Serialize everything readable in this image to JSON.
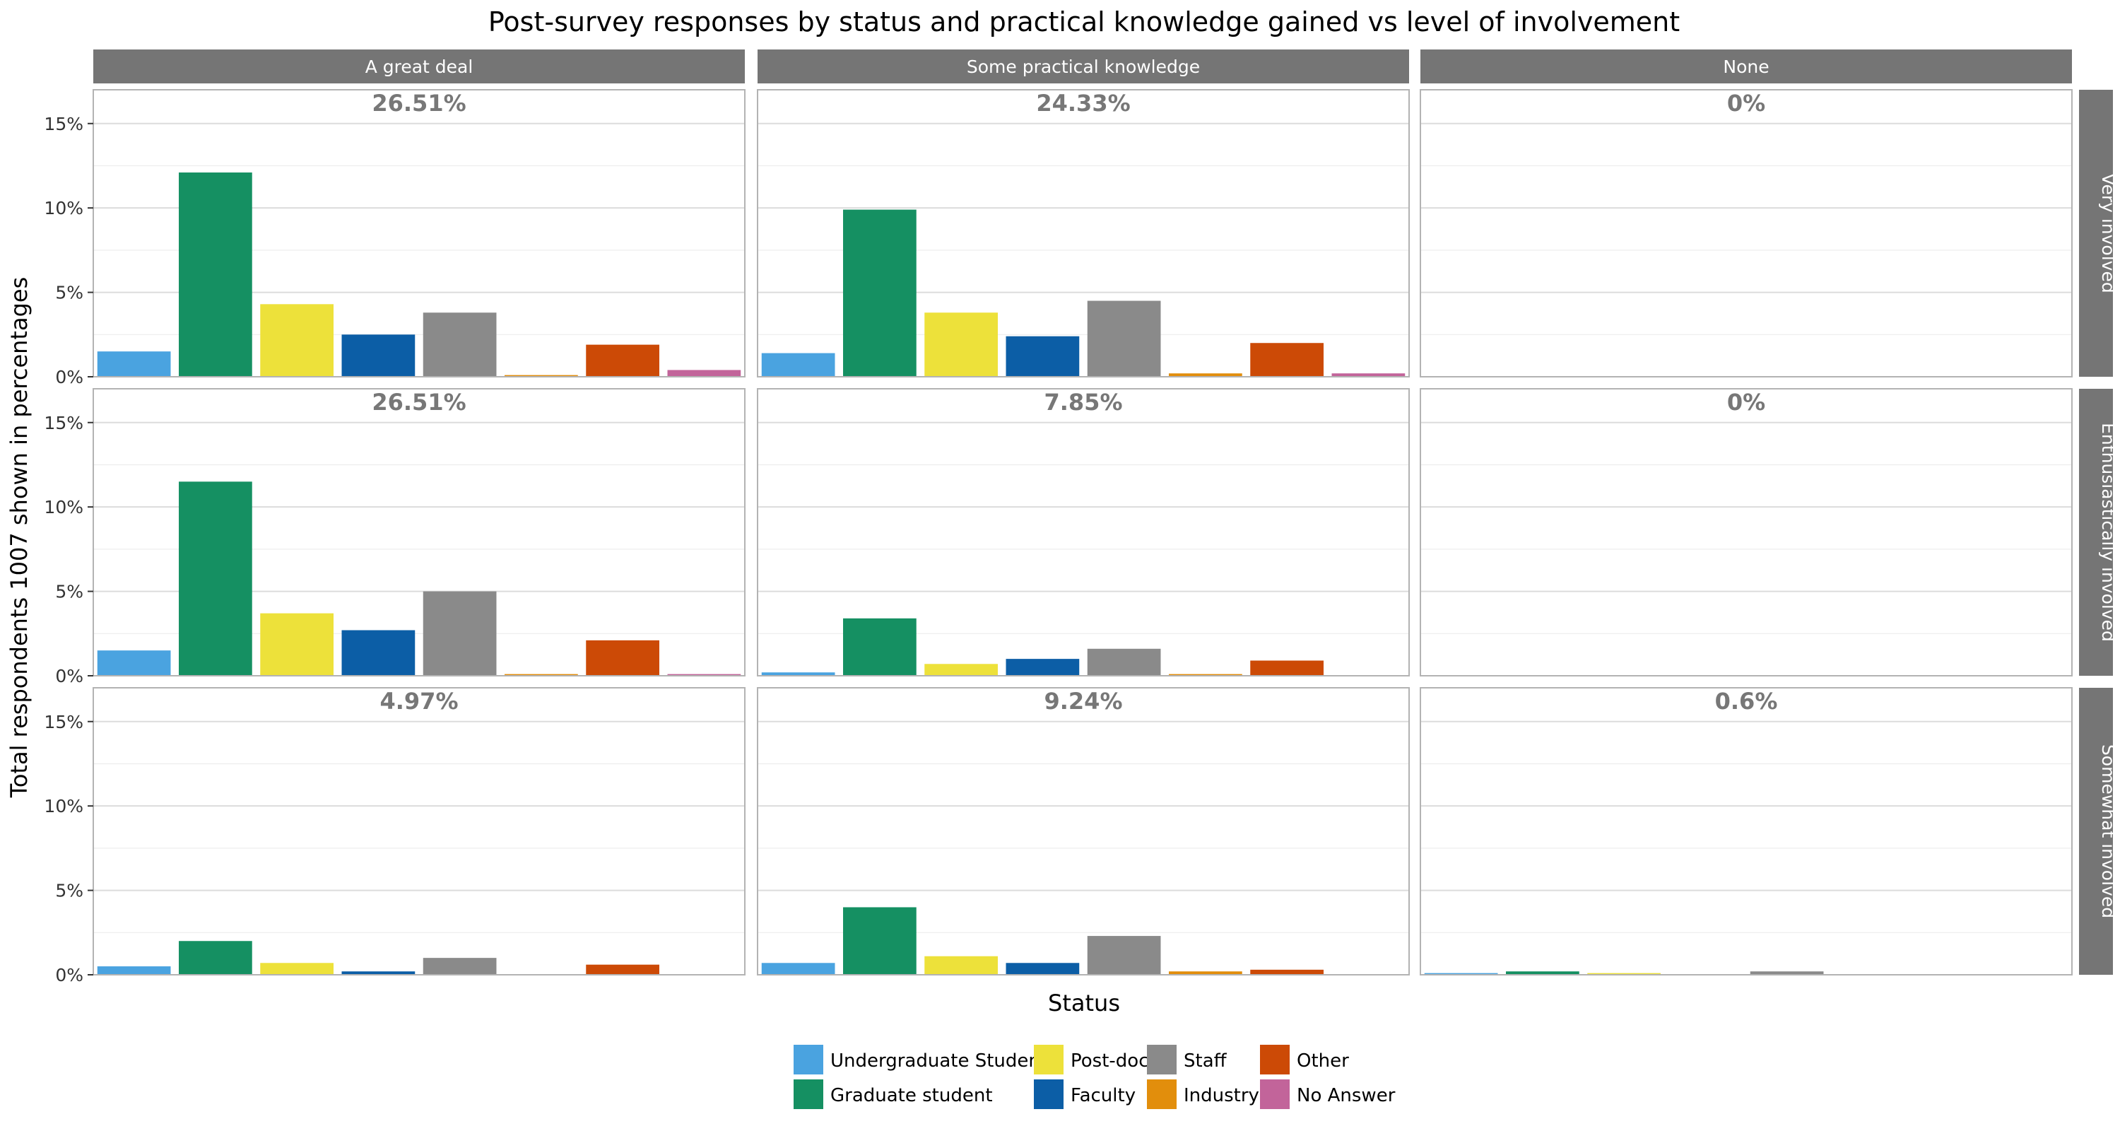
{
  "chart_data": {
    "type": "bar",
    "title": "Post-survey responses by status and practical knowledge gained vs level of involvement",
    "xlabel": "Status",
    "ylabel": "Total respondents 1007 shown in percentages",
    "ylim": [
      0,
      17
    ],
    "y_ticks": [
      "0%",
      "5%",
      "10%",
      "15%"
    ],
    "y_tick_values": [
      0,
      5,
      10,
      15
    ],
    "grid": true,
    "legend_position": "bottom",
    "column_facets": [
      "A great deal",
      "Some practical knowledge",
      "None"
    ],
    "row_facets": [
      "Very involved",
      "Enthusiastically involved",
      "Somewhat involved"
    ],
    "categories": [
      "Undergraduate Student",
      "Graduate student",
      "Post-doc",
      "Faculty",
      "Staff",
      "Industry",
      "Other",
      "No Answer"
    ],
    "colors": [
      "#4aa3e0",
      "#159062",
      "#ede13a",
      "#0c5ea6",
      "#8a8a8a",
      "#e28e0c",
      "#cc4a06",
      "#c2649a"
    ],
    "legend": {
      "columns": [
        [
          "Undergraduate Student",
          "Graduate student"
        ],
        [
          "Post-doc",
          "Faculty"
        ],
        [
          "Staff",
          "Industry"
        ],
        [
          "Other",
          "No Answer"
        ]
      ]
    },
    "panels": [
      {
        "row": "Very involved",
        "col": "A great deal",
        "label": "26.51%",
        "values": [
          1.5,
          12.1,
          4.3,
          2.5,
          3.8,
          0.1,
          1.9,
          0.4
        ]
      },
      {
        "row": "Very involved",
        "col": "Some practical knowledge",
        "label": "24.33%",
        "values": [
          1.4,
          9.9,
          3.8,
          2.4,
          4.5,
          0.2,
          2.0,
          0.2
        ]
      },
      {
        "row": "Very involved",
        "col": "None",
        "label": "0%",
        "values": [
          0,
          0,
          0,
          0,
          0,
          0,
          0,
          0
        ]
      },
      {
        "row": "Enthusiastically involved",
        "col": "A great deal",
        "label": "26.51%",
        "values": [
          1.5,
          11.5,
          3.7,
          2.7,
          5.0,
          0.1,
          2.1,
          0.1
        ]
      },
      {
        "row": "Enthusiastically involved",
        "col": "Some practical knowledge",
        "label": "7.85%",
        "values": [
          0.2,
          3.4,
          0.7,
          1.0,
          1.6,
          0.1,
          0.9,
          0
        ]
      },
      {
        "row": "Enthusiastically involved",
        "col": "None",
        "label": "0%",
        "values": [
          0,
          0,
          0,
          0,
          0,
          0,
          0,
          0
        ]
      },
      {
        "row": "Somewhat involved",
        "col": "A great deal",
        "label": "4.97%",
        "values": [
          0.5,
          2.0,
          0.7,
          0.2,
          1.0,
          0,
          0.6,
          0
        ]
      },
      {
        "row": "Somewhat involved",
        "col": "Some practical knowledge",
        "label": "9.24%",
        "values": [
          0.7,
          4.0,
          1.1,
          0.7,
          2.3,
          0.2,
          0.3,
          0
        ]
      },
      {
        "row": "Somewhat involved",
        "col": "None",
        "label": "0.6%",
        "values": [
          0.1,
          0.2,
          0.1,
          0,
          0.2,
          0,
          0,
          0
        ]
      }
    ]
  }
}
